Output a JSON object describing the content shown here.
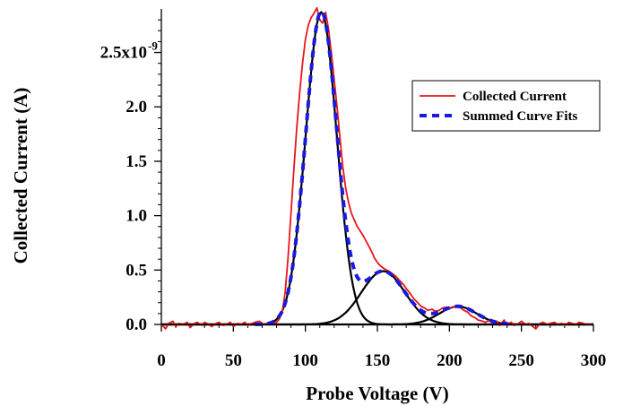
{
  "chart_data": {
    "type": "line",
    "xlabel": "Probe Voltage (V)",
    "ylabel": "Collected Current (A)",
    "xlim": [
      0,
      300
    ],
    "ylim": [
      0,
      2.9
    ],
    "x_ticks": [
      0,
      50,
      100,
      150,
      200,
      250,
      300
    ],
    "x_tick_labels": [
      "0",
      "50",
      "100",
      "150",
      "200",
      "250",
      "300"
    ],
    "y_ticks": [
      0.0,
      0.5,
      1.0,
      1.5,
      2.0,
      2.5
    ],
    "y_tick_labels": [
      "0.0",
      "0.5",
      "1.0",
      "1.5",
      "2.0",
      "2.5x10"
    ],
    "y_exponent": "-9",
    "y_unit_scale": 1e-09,
    "grid": false,
    "legend_position": "top-right",
    "series": [
      {
        "name": "Collected Current",
        "color": "#e8161b",
        "style": "solid",
        "x": [
          0,
          3,
          5,
          8,
          10,
          12,
          15,
          18,
          20,
          23,
          25,
          28,
          30,
          33,
          35,
          38,
          40,
          43,
          45,
          48,
          50,
          53,
          55,
          58,
          60,
          63,
          65,
          68,
          70,
          72,
          75,
          78,
          80,
          82,
          84,
          86,
          88,
          90,
          92,
          94,
          96,
          98,
          100,
          102,
          104,
          106,
          108,
          110,
          112,
          114,
          116,
          118,
          120,
          122,
          124,
          126,
          128,
          130,
          132,
          134,
          136,
          138,
          140,
          142,
          144,
          146,
          148,
          150,
          152,
          155,
          158,
          160,
          163,
          165,
          168,
          170,
          173,
          175,
          178,
          180,
          183,
          185,
          188,
          190,
          193,
          195,
          198,
          200,
          203,
          205,
          208,
          210,
          213,
          215,
          218,
          220,
          223,
          225,
          228,
          230,
          233,
          235,
          238,
          240,
          243,
          245,
          248,
          250,
          253,
          255,
          258,
          260,
          263,
          265,
          268,
          270,
          273,
          275,
          278,
          280,
          283,
          285,
          288,
          290,
          293,
          295,
          298,
          300
        ],
        "y": [
          0.0,
          -0.04,
          0.01,
          0.03,
          -0.02,
          0.01,
          0.0,
          0.02,
          -0.03,
          0.01,
          0.02,
          -0.01,
          0.02,
          0.0,
          -0.02,
          0.01,
          0.02,
          -0.01,
          0.0,
          0.02,
          -0.02,
          0.01,
          0.0,
          0.02,
          -0.01,
          0.01,
          0.02,
          0.03,
          0.01,
          0.0,
          0.02,
          0.01,
          0.02,
          0.05,
          0.12,
          0.3,
          0.62,
          1.02,
          1.42,
          1.8,
          2.12,
          2.4,
          2.62,
          2.75,
          2.82,
          2.86,
          2.91,
          2.8,
          2.77,
          2.87,
          2.72,
          2.5,
          2.25,
          2.0,
          1.72,
          1.45,
          1.25,
          1.12,
          1.02,
          0.96,
          0.9,
          0.86,
          0.82,
          0.77,
          0.72,
          0.67,
          0.61,
          0.57,
          0.54,
          0.51,
          0.49,
          0.47,
          0.44,
          0.41,
          0.37,
          0.33,
          0.28,
          0.24,
          0.2,
          0.17,
          0.15,
          0.13,
          0.14,
          0.12,
          0.13,
          0.15,
          0.16,
          0.15,
          0.16,
          0.17,
          0.15,
          0.13,
          0.11,
          0.08,
          0.06,
          0.04,
          0.03,
          0.02,
          0.04,
          0.01,
          0.03,
          -0.01,
          0.04,
          0.0,
          0.02,
          -0.01,
          0.01,
          0.03,
          0.0,
          0.01,
          -0.02,
          -0.04,
          0.01,
          0.02,
          0.0,
          0.01,
          0.02,
          0.0,
          0.01,
          -0.01,
          0.02,
          0.01,
          0.0,
          0.02,
          0.01,
          0.0,
          0.0,
          0.01
        ]
      },
      {
        "name": "Summed Curve Fits",
        "color": "#1a1adf",
        "style": "dashed",
        "peaks": [
          {
            "amplitude": 2.87,
            "center": 111,
            "sigma": 10.8
          },
          {
            "amplitude": 0.49,
            "center": 154,
            "sigma": 15.0
          },
          {
            "amplitude": 0.165,
            "center": 206,
            "sigma": 13.0
          }
        ]
      }
    ],
    "components": [
      {
        "color": "#000000",
        "amplitude": 2.87,
        "center": 111,
        "sigma": 10.8
      },
      {
        "color": "#000000",
        "amplitude": 0.49,
        "center": 154,
        "sigma": 15.0
      },
      {
        "color": "#000000",
        "amplitude": 0.165,
        "center": 206,
        "sigma": 13.0
      }
    ]
  }
}
